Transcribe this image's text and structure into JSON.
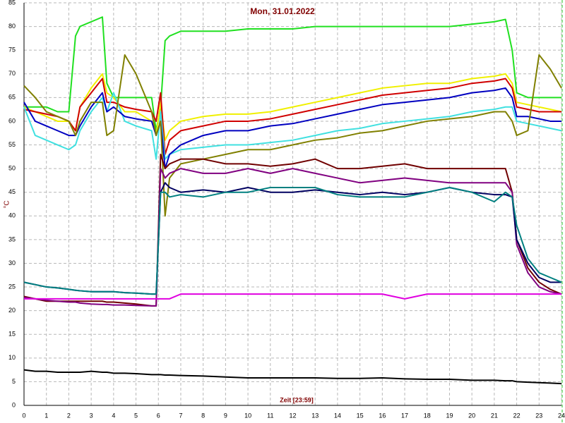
{
  "chart_data": {
    "type": "line",
    "title": "Mon, 31.01.2022",
    "x_label": "Zeit [23:59]",
    "y_label": "°C",
    "xlim": [
      0,
      24
    ],
    "ylim": [
      0,
      85
    ],
    "xticks": [
      0,
      1,
      2,
      3,
      4,
      5,
      6,
      7,
      8,
      9,
      10,
      11,
      12,
      13,
      14,
      15,
      16,
      17,
      18,
      19,
      20,
      21,
      22,
      23,
      24
    ],
    "yticks": [
      0,
      5,
      10,
      15,
      20,
      25,
      30,
      35,
      40,
      45,
      50,
      55,
      60,
      65,
      70,
      75,
      80,
      85
    ],
    "grid": true,
    "x": [
      0,
      0.5,
      1,
      1.5,
      2,
      2.3,
      2.5,
      3,
      3.5,
      3.7,
      4,
      4.5,
      5,
      5.7,
      5.9,
      6.1,
      6.3,
      6.5,
      7,
      8,
      9,
      10,
      11,
      12,
      13,
      14,
      15,
      16,
      17,
      18,
      19,
      20,
      21,
      21.5,
      21.8,
      22,
      22.5,
      23,
      23.5,
      24
    ],
    "series": [
      {
        "color": "#20e020",
        "values": [
          63,
          63,
          63,
          62,
          62,
          78,
          80,
          81,
          82,
          68,
          65,
          65,
          65,
          65,
          58,
          63,
          77,
          78,
          79,
          79,
          79,
          79.5,
          79.5,
          79.5,
          80,
          80,
          80,
          80,
          80,
          80,
          80,
          80.5,
          81,
          81.5,
          75,
          66,
          65,
          65,
          65,
          65
        ]
      },
      {
        "color": "#f0f000",
        "values": [
          63,
          62,
          61,
          60,
          60,
          58,
          63,
          67,
          70,
          66,
          65,
          62,
          62,
          60,
          57,
          64,
          56,
          58,
          60,
          61,
          61.5,
          61.5,
          62,
          63,
          64,
          65,
          66,
          67,
          67.5,
          68,
          68,
          69,
          69.5,
          70,
          68,
          64,
          63.5,
          63,
          62.5,
          62
        ]
      },
      {
        "color": "#d00000",
        "values": [
          62.5,
          62,
          61.5,
          61,
          60,
          58,
          63,
          66,
          69,
          64,
          64,
          63,
          62.5,
          62,
          60,
          66,
          53,
          56,
          58,
          59,
          60,
          60,
          60.5,
          61.5,
          62.5,
          63.5,
          64.5,
          65.5,
          66,
          66.5,
          67,
          68,
          68.5,
          69,
          67,
          63,
          62.5,
          62,
          62,
          62
        ]
      },
      {
        "color": "#40e0e0",
        "values": [
          63,
          57,
          56,
          55,
          54,
          55,
          58,
          62,
          65,
          62,
          66,
          60,
          59,
          58,
          52,
          62,
          52,
          53,
          54,
          54.5,
          55,
          55,
          55.5,
          56,
          57,
          58,
          58.5,
          59.5,
          60,
          60.5,
          61,
          62,
          62.5,
          63,
          63,
          60,
          59.5,
          59,
          58.5,
          58
        ]
      },
      {
        "color": "#0000c0",
        "values": [
          64,
          60,
          59,
          58,
          57,
          57,
          59,
          63,
          66,
          62,
          63,
          61,
          60.5,
          60,
          57,
          60,
          50,
          53,
          55,
          57,
          58,
          58,
          59,
          59.5,
          60.5,
          61.5,
          62.5,
          63.5,
          64,
          64.5,
          65,
          66,
          66.5,
          67,
          65,
          61,
          61,
          60.5,
          60,
          60
        ]
      },
      {
        "color": "#808000",
        "values": [
          67.5,
          65,
          62,
          61,
          60,
          57,
          60,
          64,
          64,
          57,
          58,
          74,
          70,
          62,
          57,
          60,
          40,
          48,
          51,
          52,
          53,
          54,
          54,
          55,
          56,
          56.5,
          57.5,
          58,
          59,
          60,
          60.5,
          61,
          62,
          62,
          60,
          57,
          58,
          74,
          71,
          67
        ]
      },
      {
        "color": "#700000",
        "values": [
          23,
          22.5,
          22,
          22,
          22,
          22,
          22,
          22,
          22,
          21.8,
          21.8,
          21.6,
          21.4,
          21,
          21,
          53,
          50,
          51,
          52,
          52,
          51,
          51,
          50.5,
          51,
          52,
          50,
          50,
          50.5,
          51,
          50,
          50,
          50,
          50,
          50,
          45,
          35,
          29,
          26,
          24.5,
          23.5
        ]
      },
      {
        "color": "#800080",
        "values": [
          22.8,
          22.5,
          22.2,
          22,
          21.8,
          21.8,
          21.6,
          21.4,
          21.3,
          21.3,
          21.2,
          21.2,
          21.1,
          21,
          21,
          50,
          48,
          49,
          50,
          49,
          49,
          50,
          49,
          50,
          49,
          48,
          47,
          47.5,
          48,
          47.5,
          47,
          47,
          47,
          47,
          45,
          34,
          28,
          25,
          24,
          23.5
        ]
      },
      {
        "color": "#000060",
        "values": [
          26,
          25.5,
          25,
          24.8,
          24.5,
          24.3,
          24.2,
          24,
          24,
          24,
          24,
          23.8,
          23.7,
          23.5,
          23.5,
          45,
          47,
          46,
          45,
          45.5,
          45,
          46,
          45,
          45,
          45.5,
          45,
          44.5,
          45,
          44.5,
          45,
          46,
          45,
          44.5,
          44.5,
          44,
          35,
          30,
          27,
          26,
          26
        ]
      },
      {
        "color": "#008080",
        "values": [
          26,
          25.5,
          25,
          24.8,
          24.5,
          24.3,
          24.2,
          24,
          24,
          24,
          24,
          23.8,
          23.7,
          23.5,
          23.5,
          45,
          45,
          44,
          44.5,
          44,
          45,
          45,
          46,
          46,
          46,
          44.5,
          44,
          44,
          44,
          45,
          46,
          45,
          43,
          45,
          44,
          38,
          31,
          28,
          27,
          26
        ]
      },
      {
        "color": "#e000e0",
        "values": [
          22.5,
          22.5,
          22.5,
          22.5,
          22.5,
          22.5,
          22.5,
          22.5,
          22.5,
          22.5,
          22.5,
          22.5,
          22.5,
          22.5,
          22.5,
          22.5,
          22.5,
          22.5,
          23.5,
          23.5,
          23.5,
          23.5,
          23.5,
          23.5,
          23.5,
          23.5,
          23.5,
          23.5,
          22.5,
          23.5,
          23.5,
          23.5,
          23.5,
          23.5,
          23.5,
          23.5,
          23.5,
          23.5,
          23.5,
          23.5
        ]
      },
      {
        "color": "#000000",
        "values": [
          7.5,
          7.2,
          7.2,
          7,
          7,
          7,
          7,
          7.2,
          7,
          7,
          6.8,
          6.8,
          6.7,
          6.5,
          6.5,
          6.5,
          6.4,
          6.4,
          6.3,
          6.2,
          6,
          5.8,
          5.8,
          5.8,
          5.8,
          5.7,
          5.7,
          5.8,
          5.6,
          5.5,
          5.5,
          5.3,
          5.3,
          5.2,
          5.2,
          5,
          4.9,
          4.8,
          4.7,
          4.6
        ]
      }
    ]
  }
}
